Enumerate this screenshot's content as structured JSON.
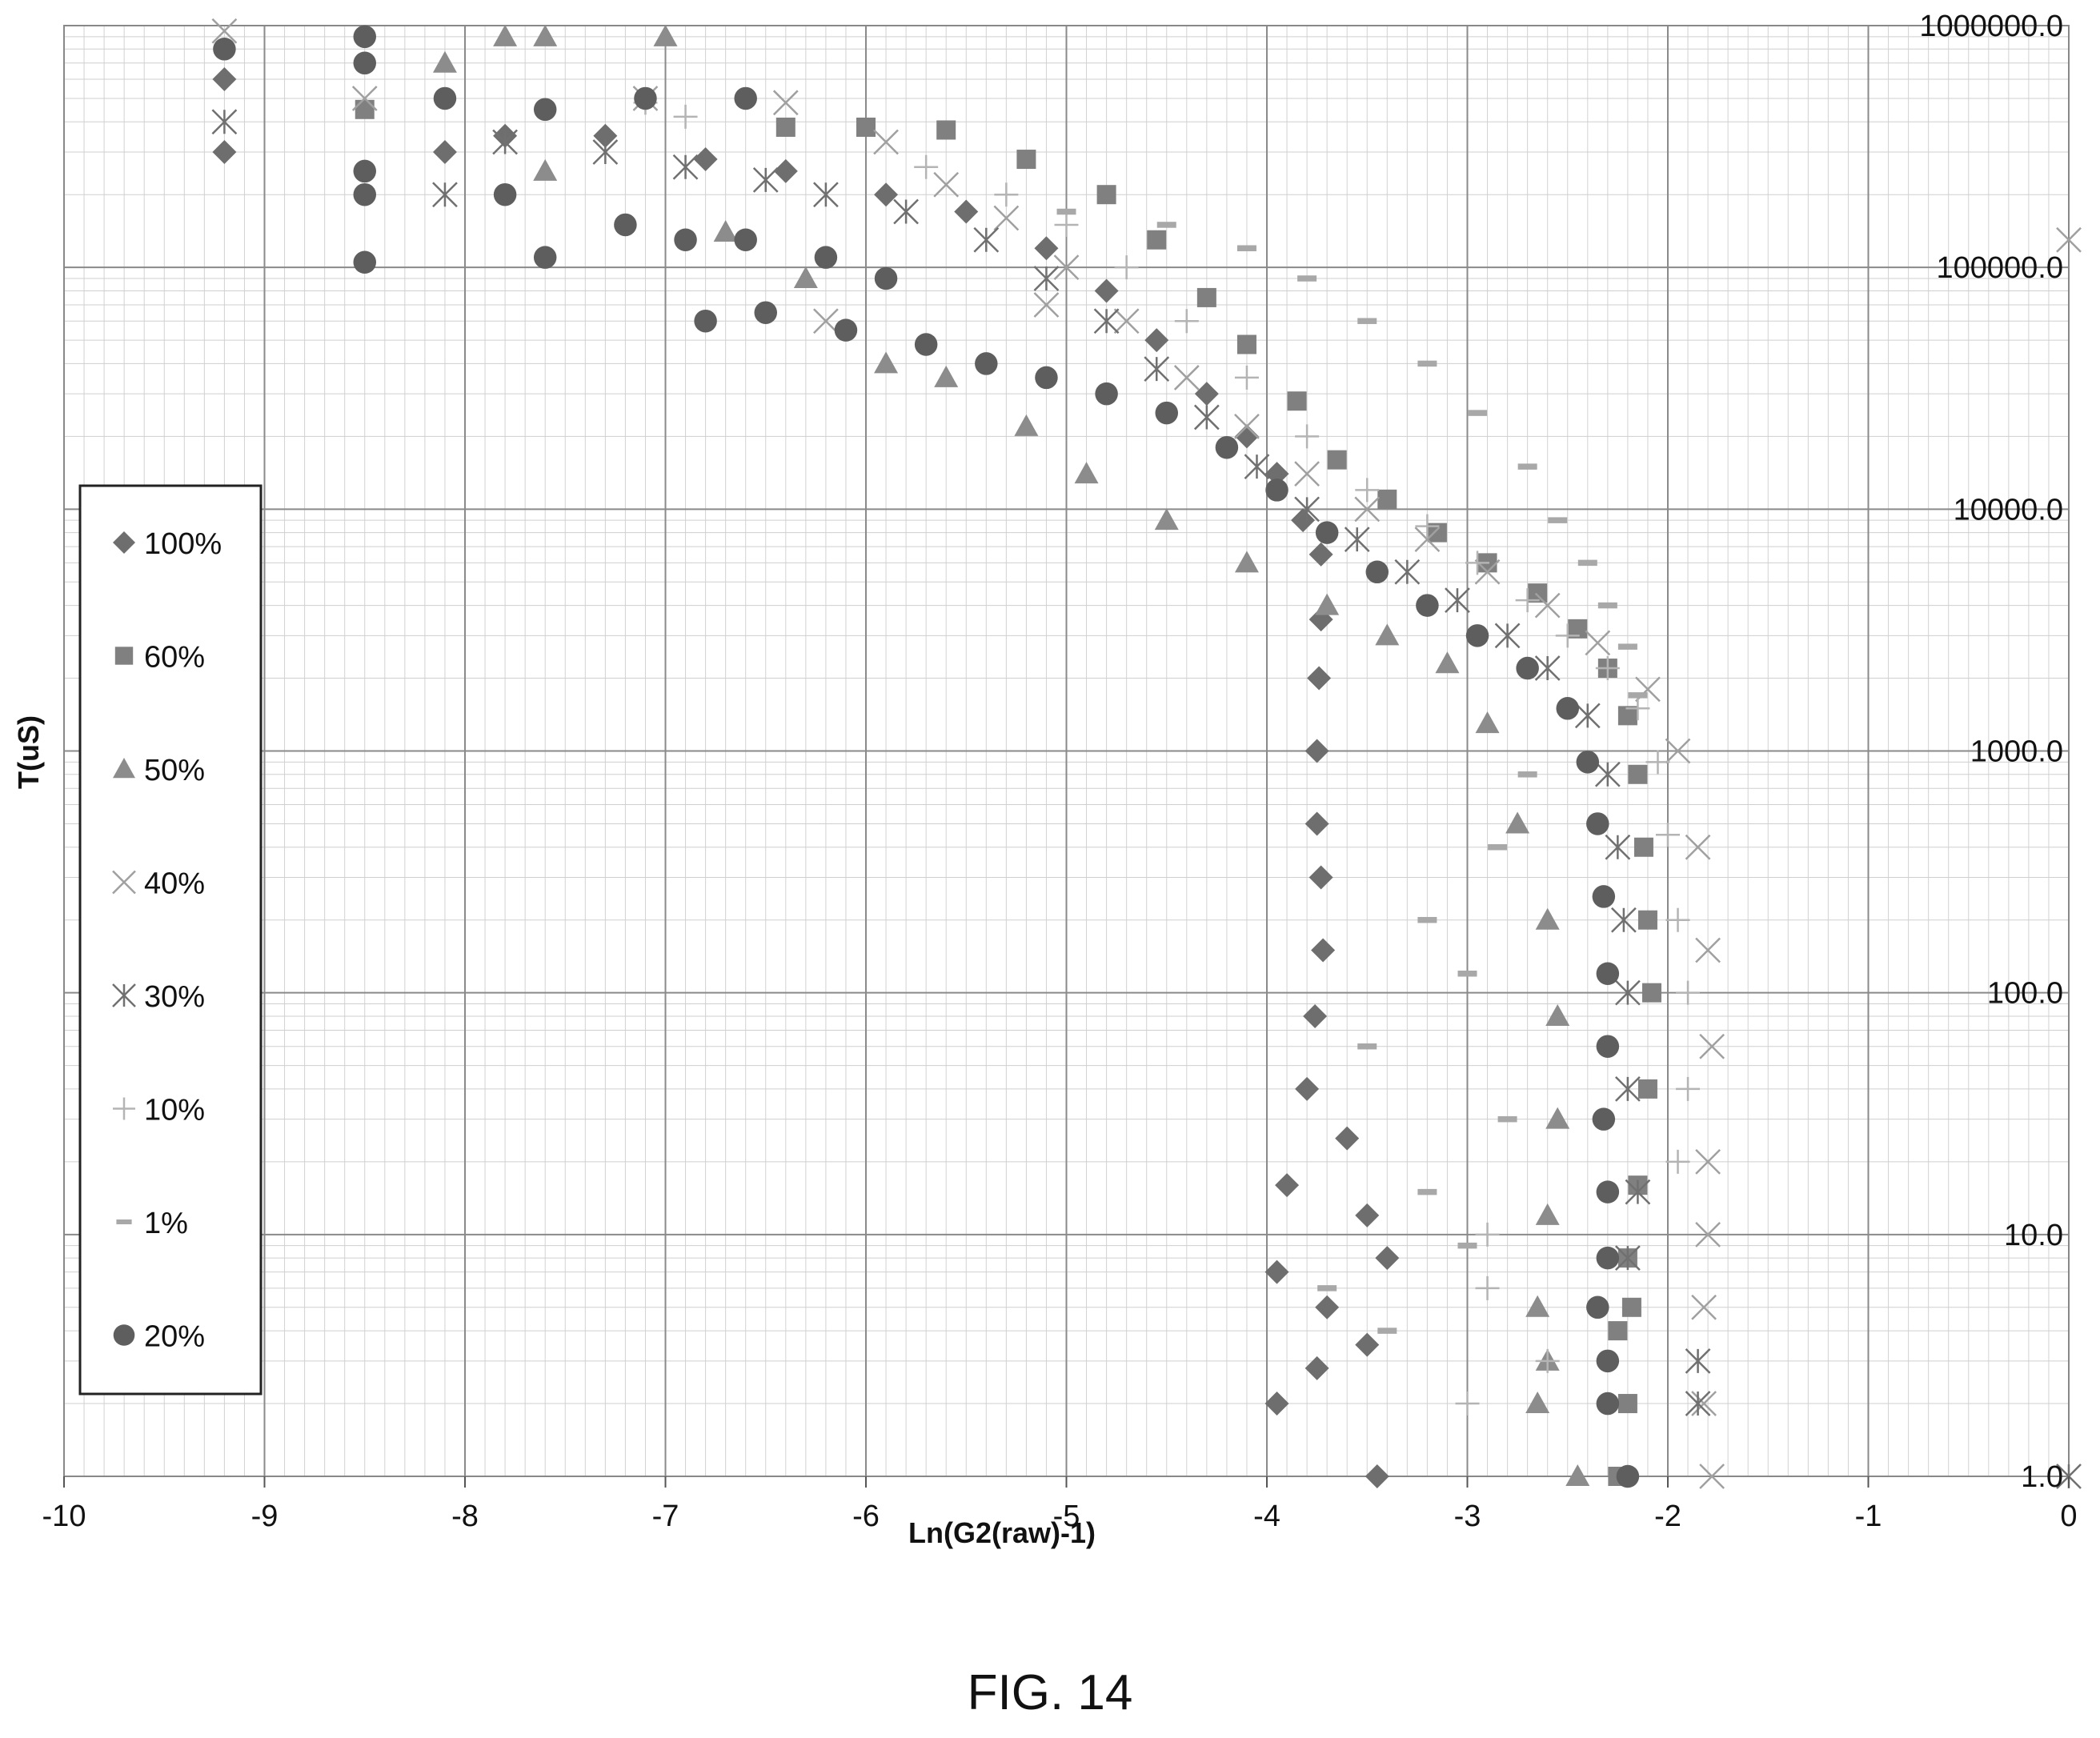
{
  "figure_label": "FIG. 14",
  "chart_data": {
    "type": "scatter",
    "title": "",
    "xlabel": "Ln(G2(raw)-1)",
    "ylabel": "T(uS)",
    "xlim": [
      -10,
      0
    ],
    "ylim": [
      1,
      1000000
    ],
    "y_scale": "log",
    "grid": true,
    "legend_position": "left",
    "x_ticks": [
      "-10",
      "-9",
      "-8",
      "-7",
      "-6",
      "-5",
      "-4",
      "-3",
      "-2",
      "-1",
      "0"
    ],
    "y_ticks": [
      "1.0",
      "10.0",
      "100.0",
      "1000.0",
      "10000.0",
      "100000.0",
      "1000000.0"
    ],
    "series": [
      {
        "name": "100%",
        "marker": "diamond",
        "color": "#6e6e6e",
        "points": [
          [
            -9.2,
            600000
          ],
          [
            -9.2,
            300000
          ],
          [
            -8.1,
            300000
          ],
          [
            -7.8,
            350000
          ],
          [
            -7.3,
            350000
          ],
          [
            -6.8,
            280000
          ],
          [
            -6.4,
            250000
          ],
          [
            -5.9,
            200000
          ],
          [
            -5.5,
            170000
          ],
          [
            -5.1,
            120000
          ],
          [
            -4.8,
            80000
          ],
          [
            -4.55,
            50000
          ],
          [
            -4.3,
            30000
          ],
          [
            -4.1,
            20000
          ],
          [
            -3.95,
            14000
          ],
          [
            -3.82,
            9000
          ],
          [
            -3.73,
            6500
          ],
          [
            -3.73,
            3500
          ],
          [
            -3.74,
            2000
          ],
          [
            -3.75,
            1000
          ],
          [
            -3.75,
            500
          ],
          [
            -3.73,
            300
          ],
          [
            -3.72,
            150
          ],
          [
            -3.76,
            80
          ],
          [
            -3.8,
            40
          ],
          [
            -3.6,
            25
          ],
          [
            -3.9,
            16
          ],
          [
            -3.5,
            12
          ],
          [
            -3.4,
            8
          ],
          [
            -3.95,
            7
          ],
          [
            -3.7,
            5
          ],
          [
            -3.5,
            3.5
          ],
          [
            -3.75,
            2.8
          ],
          [
            -3.95,
            2
          ],
          [
            -3.45,
            1
          ]
        ]
      },
      {
        "name": "60%",
        "marker": "square",
        "color": "#808080",
        "points": [
          [
            -8.5,
            450000
          ],
          [
            -6.4,
            380000
          ],
          [
            -6.0,
            380000
          ],
          [
            -5.6,
            370000
          ],
          [
            -5.2,
            280000
          ],
          [
            -4.8,
            200000
          ],
          [
            -4.55,
            130000
          ],
          [
            -4.3,
            75000
          ],
          [
            -4.1,
            48000
          ],
          [
            -3.85,
            28000
          ],
          [
            -3.65,
            16000
          ],
          [
            -3.4,
            11000
          ],
          [
            -3.15,
            8000
          ],
          [
            -2.9,
            6000
          ],
          [
            -2.65,
            4500
          ],
          [
            -2.45,
            3200
          ],
          [
            -2.3,
            2200
          ],
          [
            -2.2,
            1400
          ],
          [
            -2.15,
            800
          ],
          [
            -2.12,
            400
          ],
          [
            -2.1,
            200
          ],
          [
            -2.08,
            100
          ],
          [
            -2.1,
            40
          ],
          [
            -2.15,
            16
          ],
          [
            -2.2,
            8
          ],
          [
            -2.25,
            4
          ],
          [
            -2.18,
            5
          ],
          [
            -2.2,
            2
          ],
          [
            -2.25,
            1
          ]
        ]
      },
      {
        "name": "50%",
        "marker": "triangle",
        "color": "#8c8c8c",
        "points": [
          [
            -7.8,
            900000
          ],
          [
            -7.6,
            900000
          ],
          [
            -7.0,
            900000
          ],
          [
            -8.1,
            700000
          ],
          [
            -7.6,
            250000
          ],
          [
            -6.7,
            140000
          ],
          [
            -6.3,
            90000
          ],
          [
            -5.9,
            40000
          ],
          [
            -5.6,
            35000
          ],
          [
            -5.2,
            22000
          ],
          [
            -4.9,
            14000
          ],
          [
            -4.5,
            9000
          ],
          [
            -4.1,
            6000
          ],
          [
            -3.7,
            4000
          ],
          [
            -3.4,
            3000
          ],
          [
            -3.1,
            2300
          ],
          [
            -2.9,
            1300
          ],
          [
            -2.75,
            500
          ],
          [
            -2.6,
            200
          ],
          [
            -2.55,
            80
          ],
          [
            -2.55,
            30
          ],
          [
            -2.6,
            12
          ],
          [
            -2.65,
            5
          ],
          [
            -2.6,
            3
          ],
          [
            -2.65,
            2
          ],
          [
            -2.45,
            1
          ]
        ]
      },
      {
        "name": "40%",
        "marker": "x",
        "color": "#a0a0a0",
        "points": [
          [
            -9.2,
            950000
          ],
          [
            -8.5,
            500000
          ],
          [
            -7.1,
            500000
          ],
          [
            -6.4,
            480000
          ],
          [
            -5.9,
            330000
          ],
          [
            -5.6,
            220000
          ],
          [
            -5.3,
            160000
          ],
          [
            -5.0,
            100000
          ],
          [
            -4.7,
            60000
          ],
          [
            -4.4,
            35000
          ],
          [
            -4.1,
            22000
          ],
          [
            -3.8,
            14000
          ],
          [
            -3.5,
            10000
          ],
          [
            -3.2,
            7500
          ],
          [
            -2.9,
            5500
          ],
          [
            -2.6,
            4000
          ],
          [
            -2.35,
            2800
          ],
          [
            -2.1,
            1800
          ],
          [
            -1.95,
            1000
          ],
          [
            -1.85,
            400
          ],
          [
            -1.8,
            150
          ],
          [
            -1.78,
            60
          ],
          [
            -1.8,
            20
          ],
          [
            -1.8,
            10
          ],
          [
            -1.82,
            5
          ],
          [
            -1.82,
            2
          ],
          [
            -1.78,
            1
          ],
          [
            0,
            130000
          ],
          [
            -5.1,
            70000
          ],
          [
            -6.2,
            60000
          ]
        ]
      },
      {
        "name": "30%",
        "marker": "asterisk",
        "color": "#707070",
        "points": [
          [
            -9.2,
            400000
          ],
          [
            -8.1,
            200000
          ],
          [
            -7.8,
            330000
          ],
          [
            -7.3,
            300000
          ],
          [
            -6.9,
            260000
          ],
          [
            -6.5,
            230000
          ],
          [
            -6.2,
            200000
          ],
          [
            -5.8,
            170000
          ],
          [
            -5.4,
            130000
          ],
          [
            -5.1,
            90000
          ],
          [
            -4.8,
            60000
          ],
          [
            -4.55,
            38000
          ],
          [
            -4.3,
            24000
          ],
          [
            -4.05,
            15000
          ],
          [
            -3.8,
            10000
          ],
          [
            -3.55,
            7500
          ],
          [
            -3.3,
            5500
          ],
          [
            -3.05,
            4200
          ],
          [
            -2.8,
            3000
          ],
          [
            -2.6,
            2200
          ],
          [
            -2.4,
            1400
          ],
          [
            -2.3,
            800
          ],
          [
            -2.25,
            400
          ],
          [
            -2.22,
            200
          ],
          [
            -2.2,
            100
          ],
          [
            -2.2,
            40
          ],
          [
            -2.15,
            15
          ],
          [
            -2.2,
            8
          ],
          [
            -1.85,
            3
          ],
          [
            -1.85,
            2
          ],
          [
            0,
            1
          ]
        ]
      },
      {
        "name": "10%",
        "marker": "plus",
        "color": "#b4b4b4",
        "points": [
          [
            -7.1,
            480000
          ],
          [
            -6.9,
            420000
          ],
          [
            -5.7,
            260000
          ],
          [
            -5.3,
            200000
          ],
          [
            -5.0,
            150000
          ],
          [
            -4.7,
            100000
          ],
          [
            -4.4,
            60000
          ],
          [
            -4.1,
            35000
          ],
          [
            -3.8,
            20000
          ],
          [
            -3.5,
            12000
          ],
          [
            -3.2,
            8500
          ],
          [
            -2.95,
            6000
          ],
          [
            -2.7,
            4200
          ],
          [
            -2.5,
            3000
          ],
          [
            -2.3,
            2200
          ],
          [
            -2.15,
            1500
          ],
          [
            -2.05,
            900
          ],
          [
            -2.0,
            450
          ],
          [
            -1.95,
            200
          ],
          [
            -1.9,
            100
          ],
          [
            -1.9,
            40
          ],
          [
            -1.95,
            20
          ],
          [
            -2.9,
            10
          ],
          [
            -2.9,
            6
          ],
          [
            -2.6,
            3
          ],
          [
            -3.0,
            2
          ]
        ]
      },
      {
        "name": "1%",
        "marker": "dash",
        "color": "#a8a8a8",
        "points": [
          [
            -5.0,
            170000
          ],
          [
            -4.5,
            150000
          ],
          [
            -4.1,
            120000
          ],
          [
            -3.8,
            90000
          ],
          [
            -3.5,
            60000
          ],
          [
            -3.2,
            40000
          ],
          [
            -2.95,
            25000
          ],
          [
            -2.7,
            15000
          ],
          [
            -2.55,
            9000
          ],
          [
            -2.4,
            6000
          ],
          [
            -2.3,
            4000
          ],
          [
            -2.2,
            2700
          ],
          [
            -2.15,
            1700
          ],
          [
            -2.7,
            800
          ],
          [
            -2.85,
            400
          ],
          [
            -3.2,
            200
          ],
          [
            -3.0,
            120
          ],
          [
            -3.5,
            60
          ],
          [
            -2.8,
            30
          ],
          [
            -3.2,
            15
          ],
          [
            -3.0,
            9
          ],
          [
            -3.7,
            6
          ],
          [
            -3.4,
            4
          ]
        ]
      },
      {
        "name": "20%",
        "marker": "circle",
        "color": "#5e5e5e",
        "points": [
          [
            -9.2,
            800000
          ],
          [
            -8.5,
            900000
          ],
          [
            -8.5,
            700000
          ],
          [
            -8.1,
            500000
          ],
          [
            -7.6,
            450000
          ],
          [
            -7.1,
            500000
          ],
          [
            -6.6,
            500000
          ],
          [
            -8.5,
            250000
          ],
          [
            -8.5,
            200000
          ],
          [
            -7.8,
            200000
          ],
          [
            -8.5,
            105000
          ],
          [
            -7.6,
            110000
          ],
          [
            -7.2,
            150000
          ],
          [
            -6.9,
            130000
          ],
          [
            -6.6,
            130000
          ],
          [
            -6.2,
            110000
          ],
          [
            -5.9,
            90000
          ],
          [
            -6.8,
            60000
          ],
          [
            -6.5,
            65000
          ],
          [
            -6.1,
            55000
          ],
          [
            -5.7,
            48000
          ],
          [
            -5.4,
            40000
          ],
          [
            -5.1,
            35000
          ],
          [
            -4.8,
            30000
          ],
          [
            -4.5,
            25000
          ],
          [
            -4.2,
            18000
          ],
          [
            -3.95,
            12000
          ],
          [
            -3.7,
            8000
          ],
          [
            -3.45,
            5500
          ],
          [
            -3.2,
            4000
          ],
          [
            -2.95,
            3000
          ],
          [
            -2.7,
            2200
          ],
          [
            -2.5,
            1500
          ],
          [
            -2.4,
            900
          ],
          [
            -2.35,
            500
          ],
          [
            -2.32,
            250
          ],
          [
            -2.3,
            120
          ],
          [
            -2.3,
            60
          ],
          [
            -2.32,
            30
          ],
          [
            -2.3,
            15
          ],
          [
            -2.3,
            8
          ],
          [
            -2.35,
            5
          ],
          [
            -2.3,
            3
          ],
          [
            -2.3,
            2
          ],
          [
            -2.2,
            1
          ]
        ]
      }
    ]
  }
}
